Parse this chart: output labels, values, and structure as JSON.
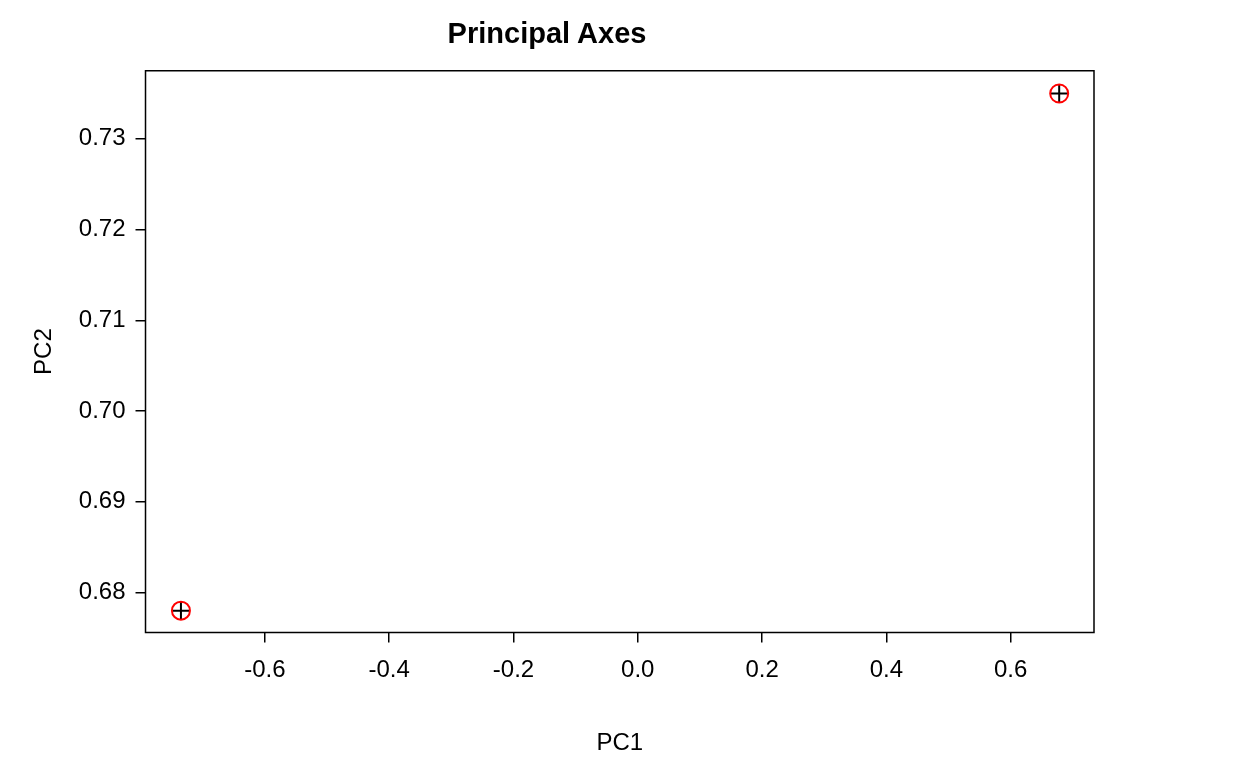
{
  "chart_data": {
    "type": "scatter",
    "title": "Principal Axes",
    "xlabel": "PC1",
    "ylabel": "PC2",
    "xlim": [
      -0.792,
      0.734
    ],
    "xticks": [
      {
        "value": -0.6,
        "label": "-0.6"
      },
      {
        "value": -0.4,
        "label": "-0.4"
      },
      {
        "value": -0.2,
        "label": "-0.2"
      },
      {
        "value": 0,
        "label": "0.0"
      },
      {
        "value": 0.2,
        "label": "0.2"
      },
      {
        "value": 0.4,
        "label": "0.4"
      },
      {
        "value": 0.6,
        "label": "0.6"
      }
    ],
    "ylim": [
      0.6756,
      0.7375
    ],
    "yticks": [
      {
        "value": 0.68,
        "label": "0.68"
      },
      {
        "value": 0.69,
        "label": "0.69"
      },
      {
        "value": 0.7,
        "label": "0.70"
      },
      {
        "value": 0.71,
        "label": "0.71"
      },
      {
        "value": 0.72,
        "label": "0.72"
      },
      {
        "value": 0.73,
        "label": "0.73"
      }
    ],
    "grid": false,
    "legend": false,
    "x": [
      -0.735,
      0.678
    ],
    "series": [
      {
        "marker": "circle",
        "color": "#ff0000",
        "values": [
          0.678,
          0.735
        ]
      },
      {
        "marker": "cross",
        "color": "#000000",
        "values": [
          0.678,
          0.735
        ]
      }
    ]
  }
}
